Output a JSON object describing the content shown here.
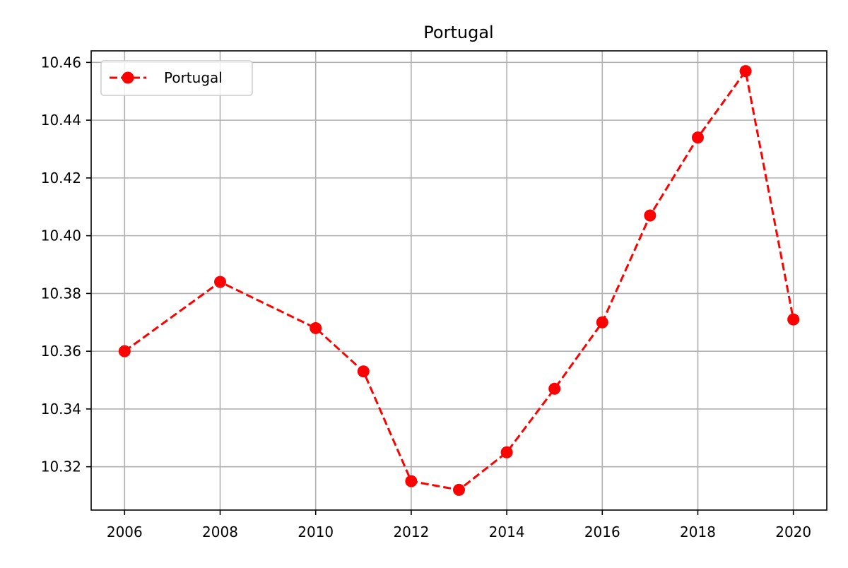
{
  "chart_data": {
    "type": "line",
    "title": "Portugal",
    "xlabel": "",
    "ylabel": "",
    "x": [
      2006,
      2008,
      2010,
      2011,
      2012,
      2013,
      2014,
      2015,
      2016,
      2017,
      2018,
      2019,
      2020
    ],
    "series": [
      {
        "name": "Portugal",
        "values": [
          10.36,
          10.384,
          10.368,
          10.353,
          10.315,
          10.312,
          10.325,
          10.347,
          10.37,
          10.407,
          10.434,
          10.457,
          10.371
        ],
        "color": "#ff0000",
        "line_style": "dashed",
        "marker": "circle"
      }
    ],
    "xticks": [
      "2006",
      "2008",
      "2010",
      "2012",
      "2014",
      "2016",
      "2018",
      "2020"
    ],
    "yticks": [
      "10.32",
      "10.34",
      "10.36",
      "10.38",
      "10.40",
      "10.42",
      "10.44",
      "10.46"
    ],
    "xlim": [
      2005.3,
      2020.7
    ],
    "ylim": [
      10.305,
      10.464
    ],
    "grid": true,
    "legend_position": "top-left"
  }
}
